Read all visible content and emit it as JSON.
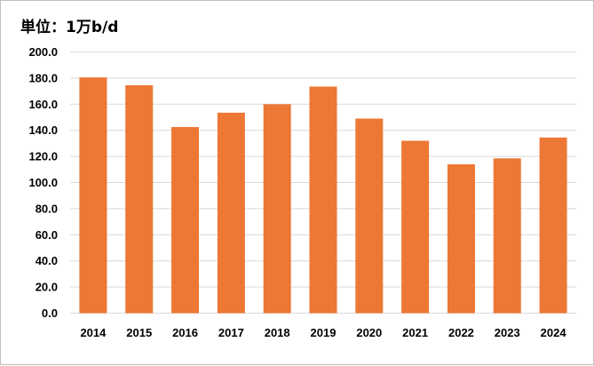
{
  "chart_data": {
    "type": "bar",
    "unit_label": "単位：1万b/d",
    "categories": [
      "2014",
      "2015",
      "2016",
      "2017",
      "2018",
      "2019",
      "2020",
      "2021",
      "2022",
      "2023",
      "2024"
    ],
    "values": [
      180.5,
      174.5,
      142.5,
      153.5,
      160.0,
      173.5,
      149.0,
      132.0,
      114.0,
      118.5,
      134.5
    ],
    "ylim": [
      0,
      200
    ],
    "ytick_step": 20,
    "ytick_decimals": 1,
    "bar_color": "#ED7734",
    "gridlines": true,
    "gridline_color": "#d9d9d9",
    "legend": "none"
  }
}
